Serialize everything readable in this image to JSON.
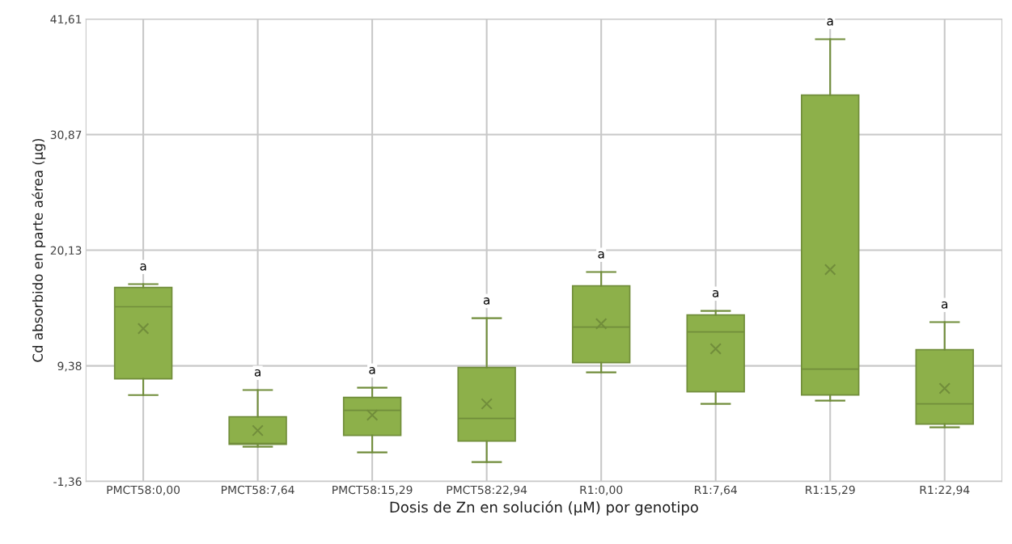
{
  "chart_data": {
    "type": "box",
    "xlabel": "Dosis de Zn en solución (µM) por genotipo",
    "ylabel": "Cd absorbido en parte aérea (µg)",
    "categories": [
      "PMCT58:0,00",
      "PMCT58:7,64",
      "PMCT58:15,29",
      "PMCT58:22,94",
      "R1:0,00",
      "R1:7,64",
      "R1:15,29",
      "R1:22,94"
    ],
    "series": [
      {
        "color": "#8db04a",
        "boxes": [
          {
            "low": 6.67,
            "q1": 8.18,
            "median": 14.87,
            "q3": 16.67,
            "high": 16.97,
            "mean": 12.84
          },
          {
            "low": 1.87,
            "q1": 2.09,
            "median": 2.17,
            "q3": 4.65,
            "high": 7.13,
            "mean": 3.37
          },
          {
            "low": 1.34,
            "q1": 2.92,
            "median": 5.25,
            "q3": 6.45,
            "high": 7.35,
            "mean": 4.8
          },
          {
            "low": 0.44,
            "q1": 2.39,
            "median": 4.5,
            "q3": 9.23,
            "high": 13.81,
            "mean": 5.85
          },
          {
            "low": 8.78,
            "q1": 9.68,
            "median": 12.99,
            "q3": 16.82,
            "high": 18.1,
            "mean": 13.29
          },
          {
            "low": 5.85,
            "q1": 6.98,
            "median": 12.54,
            "q3": 14.11,
            "high": 14.49,
            "mean": 10.96
          },
          {
            "low": 6.15,
            "q1": 6.67,
            "median": 9.08,
            "q3": 34.55,
            "high": 39.74,
            "mean": 18.32
          },
          {
            "low": 3.67,
            "q1": 3.97,
            "median": 5.85,
            "q3": 10.88,
            "high": 13.44,
            "mean": 7.28
          }
        ]
      }
    ],
    "annotations": [
      "a",
      "a",
      "a",
      "a",
      "a",
      "a",
      "a",
      "a"
    ],
    "ylim": [
      -1.36,
      41.61
    ],
    "yticks": [
      {
        "value": -1.36,
        "label": "-1,36"
      },
      {
        "value": 9.38,
        "label": "9,38"
      },
      {
        "value": 20.13,
        "label": "20,13"
      },
      {
        "value": 30.87,
        "label": "30,87"
      },
      {
        "value": 41.61,
        "label": "41,61"
      }
    ],
    "grid": true,
    "marker": "cross"
  }
}
